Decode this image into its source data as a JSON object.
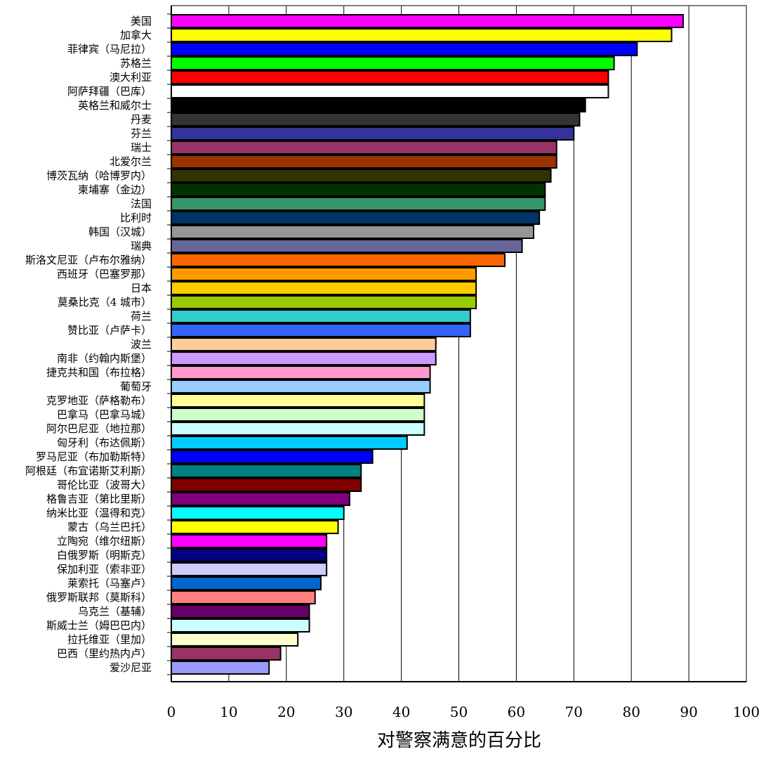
{
  "chart_data": {
    "type": "bar",
    "orientation": "horizontal",
    "title": "",
    "xlabel": "对警察满意的百分比",
    "ylabel": "",
    "xlim": [
      0,
      100
    ],
    "xticks": [
      "0",
      "10",
      "20",
      "30",
      "40",
      "50",
      "60",
      "70",
      "80",
      "90",
      "100"
    ],
    "grid": "vertical gridlines",
    "legend": "none",
    "categories": [
      "美国",
      "加拿大",
      "菲律宾（马尼拉）",
      "苏格兰",
      "澳大利亚",
      "阿萨拜疆（巴库）",
      "英格兰和威尔士",
      "丹麦",
      "芬兰",
      "瑞士",
      "北爱尔兰",
      "博茨瓦纳（哈博罗内）",
      "柬埔寨（金边）",
      "法国",
      "比利时",
      "韩国（汉城）",
      "瑞典",
      "斯洛文尼亚（卢布尔雅纳）",
      "西班牙（巴塞罗那）",
      "日本",
      "莫桑比克（4 城市）",
      "荷兰",
      "赞比亚（卢萨卡）",
      "波兰",
      "南非（约翰内斯堡）",
      "捷克共和国（布拉格）",
      "葡萄牙",
      "克罗地亚（萨格勒布）",
      "巴拿马（巴拿马城）",
      "阿尔巴尼亚（地拉那）",
      "匈牙利（布达佩斯）",
      "罗马尼亚（布加勒斯特）",
      "阿根廷（布宜诺斯艾利斯）",
      "哥伦比亚（波哥大）",
      "格鲁吉亚（第比里斯）",
      "纳米比亚（温得和克）",
      "蒙古（乌兰巴托）",
      "立陶宛（维尔纽斯）",
      "白俄罗斯（明斯克）",
      "保加利亚（索非亚）",
      "莱索托（马塞卢）",
      "俄罗斯联邦（莫斯科）",
      "乌克兰（基辅）",
      "斯威士兰（姆巴巴内）",
      "拉托维亚（里加）",
      "巴西（里约热内卢）",
      "爱沙尼亚"
    ],
    "values": [
      89,
      87,
      81,
      77,
      76,
      76,
      72,
      71,
      70,
      67,
      67,
      66,
      65,
      65,
      64,
      63,
      61,
      58,
      53,
      53,
      53,
      52,
      52,
      46,
      46,
      45,
      45,
      44,
      44,
      44,
      41,
      35,
      33,
      33,
      31,
      30,
      29,
      27,
      27,
      27,
      26,
      25,
      24,
      24,
      22,
      19,
      17
    ],
    "colors": [
      "#ff00ff",
      "#ffff00",
      "#0000ff",
      "#00ff00",
      "#ff0000",
      "#ffffff",
      "#000000",
      "#333333",
      "#333399",
      "#993366",
      "#993300",
      "#333300",
      "#003300",
      "#339966",
      "#003366",
      "#969696",
      "#666699",
      "#ff6600",
      "#ff9900",
      "#ffcc00",
      "#99cc00",
      "#33cccc",
      "#3366ff",
      "#ffcc99",
      "#cc99ff",
      "#ff99cc",
      "#99ccff",
      "#ffff99",
      "#ccffcc",
      "#ccffff",
      "#00ccff",
      "#0000ff",
      "#008080",
      "#800000",
      "#800080",
      "#00ffff",
      "#ffff00",
      "#ff00ff",
      "#000080",
      "#ccccff",
      "#0066cc",
      "#ff8080",
      "#660066",
      "#ccffff",
      "#ffffcc",
      "#993366",
      "#9999ff"
    ]
  }
}
